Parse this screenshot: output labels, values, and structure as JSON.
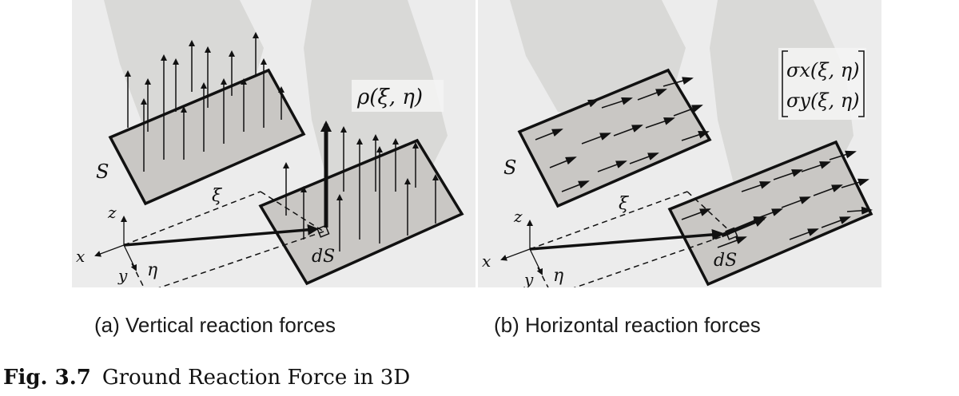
{
  "colors": {
    "panel_bg": "#ececec",
    "robot_shade": "#d9d9d7",
    "foot_fill": "#c9c7c4",
    "line": "#111111"
  },
  "panel_a": {
    "caption": "(a) Vertical reaction forces",
    "labels": {
      "surface": "S",
      "xi": "ξ",
      "eta": "η",
      "dS": "dS",
      "z": "z",
      "x": "x",
      "y": "y",
      "pressure": "ρ(ξ, η)"
    }
  },
  "panel_b": {
    "caption": "(b) Horizontal reaction forces",
    "labels": {
      "surface": "S",
      "xi": "ξ",
      "eta": "η",
      "dS": "dS",
      "z": "z",
      "x": "x",
      "y": "y",
      "sigma_x": "σx(ξ, η)",
      "sigma_y": "σy(ξ, η)"
    }
  },
  "figure": {
    "number": "Fig. 3.7",
    "title": "Ground Reaction Force in 3D"
  }
}
